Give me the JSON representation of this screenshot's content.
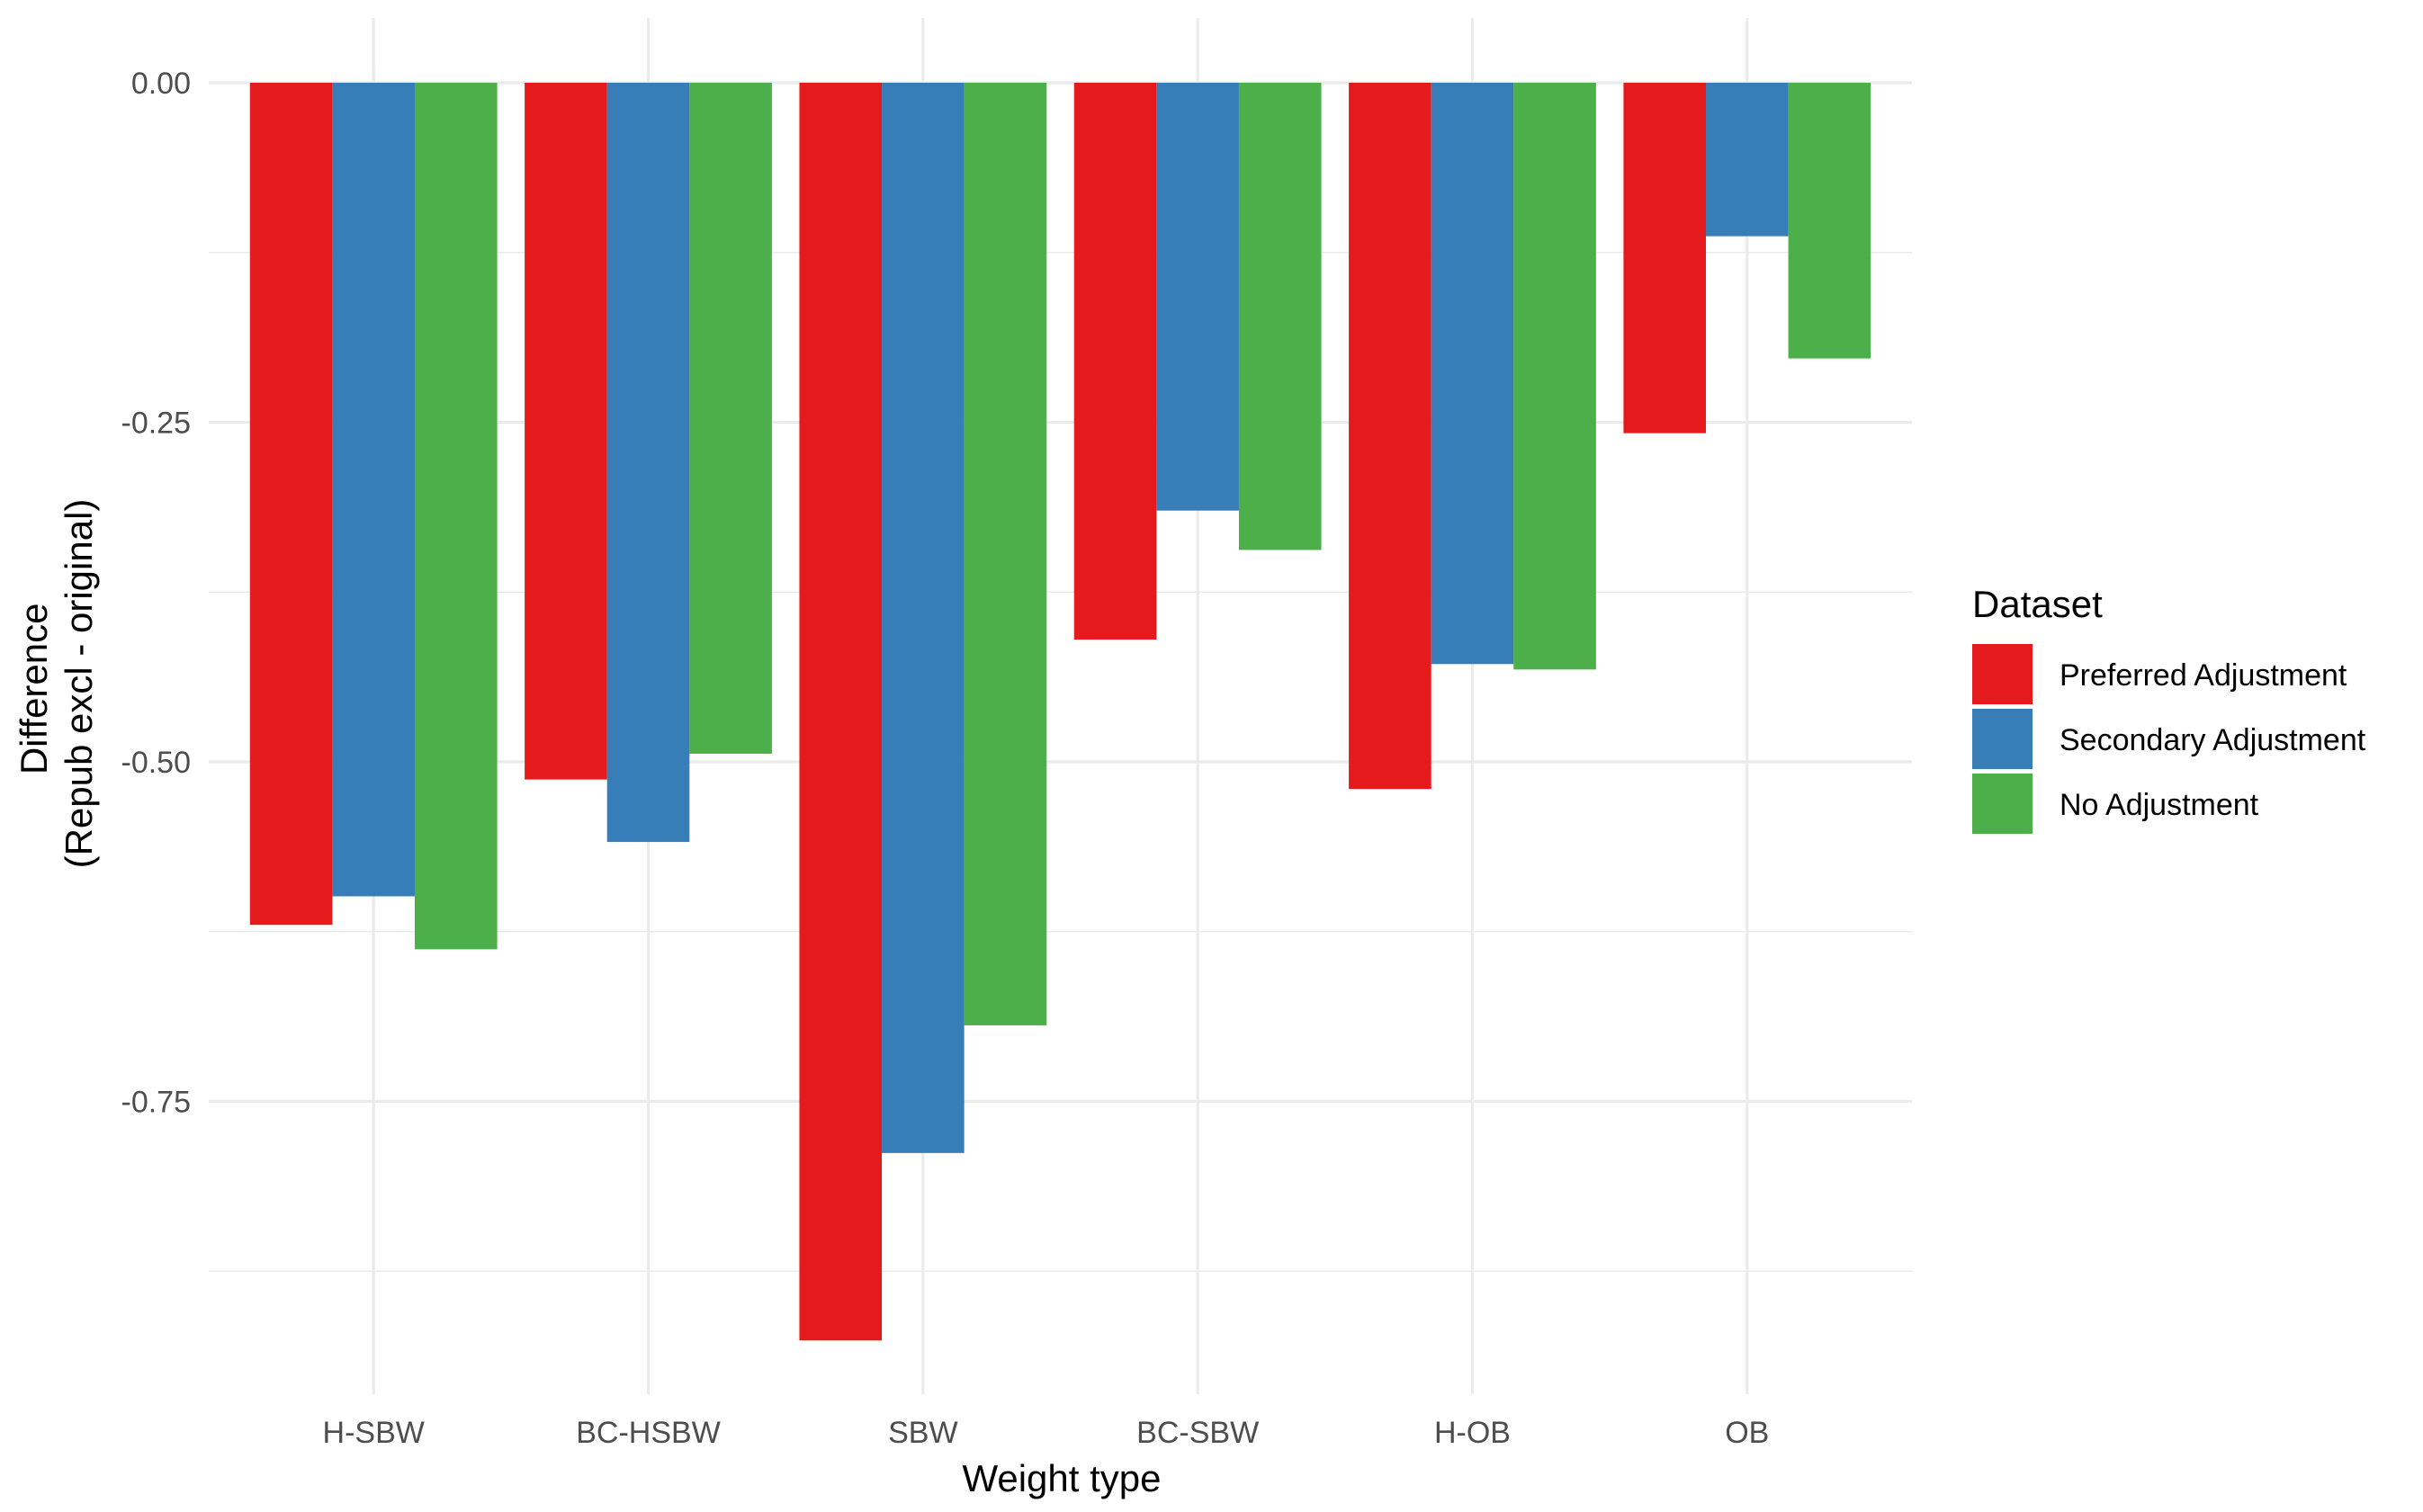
{
  "chart_data": {
    "type": "bar",
    "xlabel": "Weight type",
    "ylabel": [
      "Difference",
      "(Repub excl - original)"
    ],
    "categories": [
      "H-SBW",
      "BC-HSBW",
      "SBW",
      "BC-SBW",
      "H-OB",
      "OB"
    ],
    "series": [
      {
        "name": "Preferred Adjustment",
        "color": "#E41A1C",
        "values": [
          -0.62,
          -0.513,
          -0.926,
          -0.41,
          -0.52,
          -0.258
        ]
      },
      {
        "name": "Secondary Adjustment",
        "color": "#377EB8",
        "values": [
          -0.599,
          -0.559,
          -0.788,
          -0.315,
          -0.428,
          -0.113
        ]
      },
      {
        "name": "No Adjustment",
        "color": "#4DAF4A",
        "values": [
          -0.638,
          -0.494,
          -0.694,
          -0.344,
          -0.432,
          -0.203
        ]
      }
    ],
    "yticks": [
      "0.00",
      "-0.25",
      "-0.50",
      "-0.75"
    ],
    "ylim": [
      -0.96,
      0.045
    ],
    "grid": true,
    "legend": {
      "title": "Dataset",
      "placement": "right"
    }
  }
}
